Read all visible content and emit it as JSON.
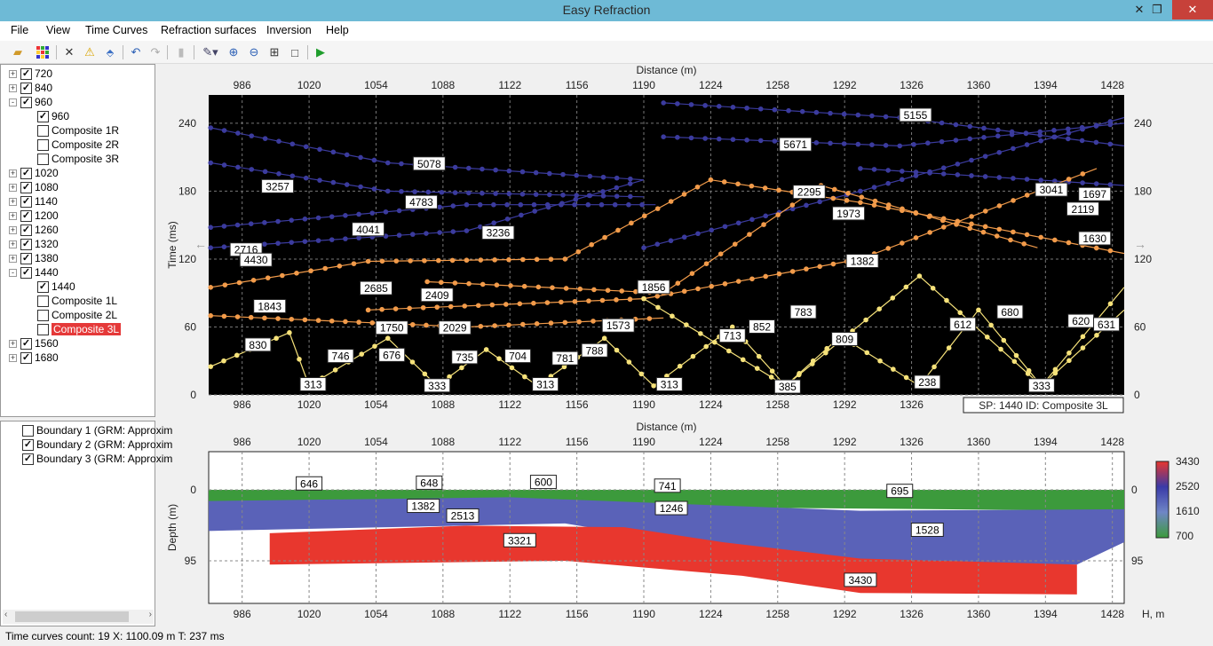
{
  "window": {
    "title": "Easy Refraction"
  },
  "menu": [
    "File",
    "View",
    "Time Curves",
    "Refraction surfaces",
    "Inversion",
    "Help"
  ],
  "toolbar_icons": [
    "open-folder-icon",
    "grid-icon",
    "delete-icon",
    "warning-icon",
    "eraser-icon",
    "undo-icon",
    "redo-icon",
    "chart-icon",
    "pen-icon",
    "zoom-in-icon",
    "zoom-out-icon",
    "zoom-fit-icon",
    "select-rect-icon",
    "run-icon"
  ],
  "tree": {
    "nodes": [
      {
        "label": "720",
        "checked": true,
        "level": 0,
        "expander": "+"
      },
      {
        "label": "840",
        "checked": true,
        "level": 0,
        "expander": "+"
      },
      {
        "label": "960",
        "checked": true,
        "level": 0,
        "expander": "-"
      },
      {
        "label": "960",
        "checked": true,
        "level": 1
      },
      {
        "label": "Composite 1R",
        "checked": false,
        "level": 1
      },
      {
        "label": "Composite 2R",
        "checked": false,
        "level": 1
      },
      {
        "label": "Composite 3R",
        "checked": false,
        "level": 1
      },
      {
        "label": "1020",
        "checked": true,
        "level": 0,
        "expander": "+"
      },
      {
        "label": "1080",
        "checked": true,
        "level": 0,
        "expander": "+"
      },
      {
        "label": "1140",
        "checked": true,
        "level": 0,
        "expander": "+"
      },
      {
        "label": "1200",
        "checked": true,
        "level": 0,
        "expander": "+"
      },
      {
        "label": "1260",
        "checked": true,
        "level": 0,
        "expander": "+"
      },
      {
        "label": "1320",
        "checked": true,
        "level": 0,
        "expander": "+"
      },
      {
        "label": "1380",
        "checked": true,
        "level": 0,
        "expander": "+"
      },
      {
        "label": "1440",
        "checked": true,
        "level": 0,
        "expander": "-"
      },
      {
        "label": "1440",
        "checked": true,
        "level": 1
      },
      {
        "label": "Composite 1L",
        "checked": false,
        "level": 1
      },
      {
        "label": "Composite 2L",
        "checked": false,
        "level": 1
      },
      {
        "label": "Composite 3L",
        "checked": false,
        "level": 1,
        "selected": true
      },
      {
        "label": "1560",
        "checked": true,
        "level": 0,
        "expander": "+"
      },
      {
        "label": "1680",
        "checked": true,
        "level": 0,
        "expander": "+"
      }
    ]
  },
  "boundaries": [
    {
      "label": "Boundary 1 (GRM: Approxim",
      "checked": false
    },
    {
      "label": "Boundary 2 (GRM: Approxim",
      "checked": true
    },
    {
      "label": "Boundary 3 (GRM: Approxim",
      "checked": true
    }
  ],
  "status": {
    "text": "Time curves count: 19  X: 1100.09 m  T: 237 ms"
  },
  "time_plot": {
    "xlabel": "Distance (m)",
    "ylabel": "Time (ms)",
    "x_ticks": [
      986,
      1020,
      1054,
      1088,
      1122,
      1156,
      1190,
      1224,
      1258,
      1292,
      1326,
      1360,
      1394,
      1428
    ],
    "y_ticks": [
      0,
      60,
      120,
      180,
      240
    ],
    "xlim": [
      969,
      1434
    ],
    "ylim": [
      0,
      265
    ],
    "info": "SP: 1440 ID: Composite 3L",
    "labels": [
      {
        "t": "5155",
        "x": 1328,
        "y": 247
      },
      {
        "t": "5671",
        "x": 1267,
        "y": 221
      },
      {
        "t": "5078",
        "x": 1081,
        "y": 204
      },
      {
        "t": "3257",
        "x": 1004,
        "y": 184
      },
      {
        "t": "2295",
        "x": 1274,
        "y": 179
      },
      {
        "t": "3041",
        "x": 1397,
        "y": 181
      },
      {
        "t": "1697",
        "x": 1419,
        "y": 177
      },
      {
        "t": "4783",
        "x": 1077,
        "y": 170
      },
      {
        "t": "1973",
        "x": 1294,
        "y": 160
      },
      {
        "t": "2119",
        "x": 1413,
        "y": 164
      },
      {
        "t": "4041",
        "x": 1050,
        "y": 146
      },
      {
        "t": "3236",
        "x": 1116,
        "y": 143
      },
      {
        "t": "2716",
        "x": 988,
        "y": 128
      },
      {
        "t": "4430",
        "x": 993,
        "y": 119
      },
      {
        "t": "1630",
        "x": 1419,
        "y": 138
      },
      {
        "t": "1382",
        "x": 1301,
        "y": 118
      },
      {
        "t": "2685",
        "x": 1054,
        "y": 94
      },
      {
        "t": "2409",
        "x": 1085,
        "y": 88
      },
      {
        "t": "1856",
        "x": 1195,
        "y": 95
      },
      {
        "t": "1843",
        "x": 1000,
        "y": 78
      },
      {
        "t": "783",
        "x": 1271,
        "y": 73
      },
      {
        "t": "680",
        "x": 1376,
        "y": 73
      },
      {
        "t": "1750",
        "x": 1062,
        "y": 59
      },
      {
        "t": "2029",
        "x": 1094,
        "y": 59
      },
      {
        "t": "1573",
        "x": 1177,
        "y": 61
      },
      {
        "t": "852",
        "x": 1250,
        "y": 60
      },
      {
        "t": "612",
        "x": 1352,
        "y": 62
      },
      {
        "t": "620",
        "x": 1412,
        "y": 65
      },
      {
        "t": "631",
        "x": 1425,
        "y": 62
      },
      {
        "t": "713",
        "x": 1235,
        "y": 52
      },
      {
        "t": "809",
        "x": 1292,
        "y": 49
      },
      {
        "t": "830",
        "x": 994,
        "y": 44
      },
      {
        "t": "788",
        "x": 1165,
        "y": 39
      },
      {
        "t": "746",
        "x": 1036,
        "y": 34
      },
      {
        "t": "676",
        "x": 1062,
        "y": 35
      },
      {
        "t": "735",
        "x": 1099,
        "y": 33
      },
      {
        "t": "704",
        "x": 1126,
        "y": 34
      },
      {
        "t": "781",
        "x": 1150,
        "y": 32
      },
      {
        "t": "313",
        "x": 1022,
        "y": 9
      },
      {
        "t": "333",
        "x": 1085,
        "y": 8
      },
      {
        "t": "313",
        "x": 1140,
        "y": 9
      },
      {
        "t": "313",
        "x": 1203,
        "y": 9
      },
      {
        "t": "385",
        "x": 1263,
        "y": 7
      },
      {
        "t": "238",
        "x": 1334,
        "y": 11
      },
      {
        "t": "333",
        "x": 1392,
        "y": 8
      }
    ]
  },
  "depth_plot": {
    "xlabel": "Distance (m)",
    "ylabel": "Depth (m)",
    "x_ticks": [
      986,
      1020,
      1054,
      1088,
      1122,
      1156,
      1190,
      1224,
      1258,
      1292,
      1326,
      1360,
      1394,
      1428
    ],
    "x_axis_unit": "H, m",
    "y_ticks": [
      0,
      95
    ],
    "labels": [
      {
        "t": "646",
        "x": 1020,
        "y": 8
      },
      {
        "t": "648",
        "x": 1081,
        "y": 9
      },
      {
        "t": "600",
        "x": 1139,
        "y": 10
      },
      {
        "t": "741",
        "x": 1202,
        "y": 5
      },
      {
        "t": "695",
        "x": 1320,
        "y": -2
      },
      {
        "t": "1382",
        "x": 1078,
        "y": -22
      },
      {
        "t": "2513",
        "x": 1098,
        "y": -35
      },
      {
        "t": "1246",
        "x": 1204,
        "y": -25
      },
      {
        "t": "1528",
        "x": 1334,
        "y": -54
      },
      {
        "t": "3321",
        "x": 1127,
        "y": -68
      },
      {
        "t": "3430",
        "x": 1300,
        "y": -121
      }
    ]
  },
  "colorbar": {
    "ticks": [
      3430,
      2520,
      1610,
      700
    ],
    "colors": [
      "#e8372e",
      "#3a3aa8",
      "#6f86c6",
      "#3c9a3c"
    ]
  }
}
